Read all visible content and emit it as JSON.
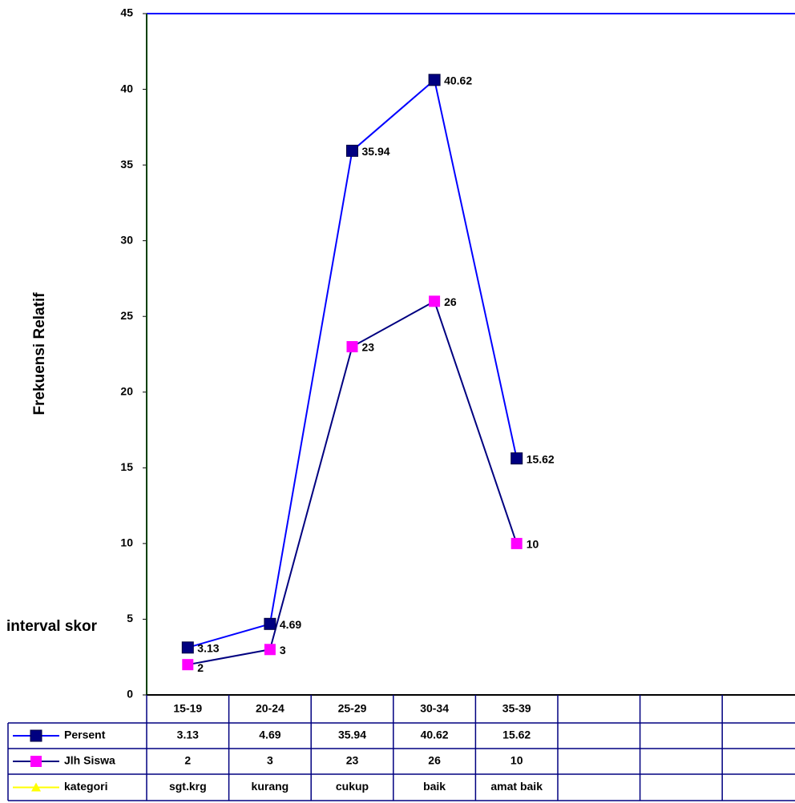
{
  "chart_data": {
    "type": "line",
    "y_label": "Frekuensi  Relatif",
    "x_label": "interval skor",
    "categories": [
      "15-19",
      "20-24",
      "25-29",
      "30-34",
      "35-39",
      null,
      null,
      null
    ],
    "series": [
      {
        "name": "Persent",
        "color": "#0000ff",
        "marker_color": "#000080",
        "marker": "square",
        "values": [
          3.13,
          4.69,
          35.94,
          40.62,
          15.62,
          null,
          null,
          null
        ]
      },
      {
        "name": "Jlh Siswa",
        "color": "#000080",
        "marker_color": "#ff00ff",
        "marker": "square",
        "values": [
          2,
          3,
          23,
          26,
          10,
          null,
          null,
          null
        ]
      },
      {
        "name": "kategori",
        "color": "#ffff00",
        "marker_color": "#ffff00",
        "marker": "triangle",
        "labels": [
          "sgt.krg",
          "kurang",
          "cukup",
          "baik",
          "amat baik",
          null,
          null,
          null
        ]
      }
    ],
    "ylim": [
      0,
      45
    ],
    "yticks": [
      0,
      5,
      10,
      15,
      20,
      25,
      30,
      35,
      40,
      45
    ],
    "data_labels": true,
    "data_table": true
  }
}
